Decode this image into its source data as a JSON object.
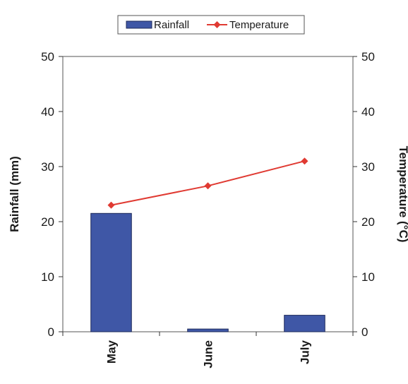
{
  "colors": {
    "rainfall": "#3f57a6",
    "rainfall_stroke": "#1d2a5a",
    "temperature": "#e03a32",
    "axis": "#333333"
  },
  "chart_data": {
    "type": "bar",
    "categories": [
      "May",
      "June",
      "July"
    ],
    "series": [
      {
        "name": "Rainfall",
        "type": "bar",
        "axis": "left",
        "values": [
          21.5,
          0.5,
          3.0
        ]
      },
      {
        "name": "Temperature",
        "type": "line",
        "axis": "right",
        "marker": "diamond",
        "values": [
          23.0,
          26.5,
          31.0
        ]
      }
    ],
    "ylabel": "Rainfall (mm)",
    "y2label": "Temperature (°C)",
    "ylim": [
      0,
      50
    ],
    "y2lim": [
      0,
      50
    ],
    "yticks": [
      0,
      10,
      20,
      30,
      40,
      50
    ],
    "y2ticks": [
      0,
      10,
      20,
      30,
      40,
      50
    ],
    "grid": false,
    "legend_position": "top"
  }
}
